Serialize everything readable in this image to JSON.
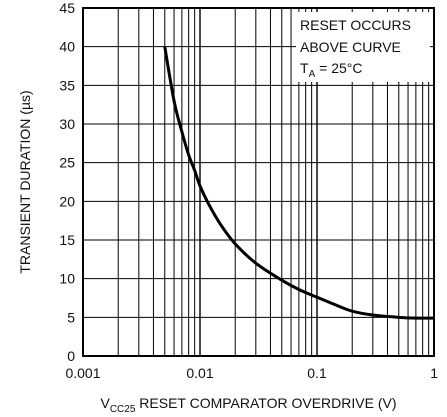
{
  "chart_data": {
    "type": "line",
    "title": "",
    "x_scale": "log",
    "xlim": [
      0.001,
      1
    ],
    "ylim": [
      0,
      45
    ],
    "x_ticks": [
      "0.001",
      "0.01",
      "0.1",
      "1"
    ],
    "y_ticks": [
      "0",
      "5",
      "10",
      "15",
      "20",
      "25",
      "30",
      "35",
      "40",
      "45"
    ],
    "grid": true,
    "xlabel": {
      "prefix": "V",
      "subscript": "CC25",
      "rest": " RESET COMPARATOR OVERDRIVE (V)"
    },
    "ylabel": "TRANSIENT DURATION (µs)",
    "annotation": {
      "line1": "RESET OCCURS",
      "line2": "ABOVE CURVE",
      "line3_prefix": "T",
      "line3_subscript": "A",
      "line3_rest": " = 25°C"
    },
    "series": [
      {
        "x": [
          0.005,
          0.006,
          0.007,
          0.008,
          0.009,
          0.01,
          0.012,
          0.015,
          0.02,
          0.03,
          0.05,
          0.07,
          0.1,
          0.15,
          0.2,
          0.3,
          0.5,
          0.7,
          1.0
        ],
        "y": [
          40,
          33,
          29,
          26,
          24,
          22,
          19.5,
          17,
          14.5,
          12,
          9.8,
          8.6,
          7.6,
          6.5,
          5.8,
          5.3,
          5.0,
          4.9,
          4.9
        ]
      }
    ]
  }
}
